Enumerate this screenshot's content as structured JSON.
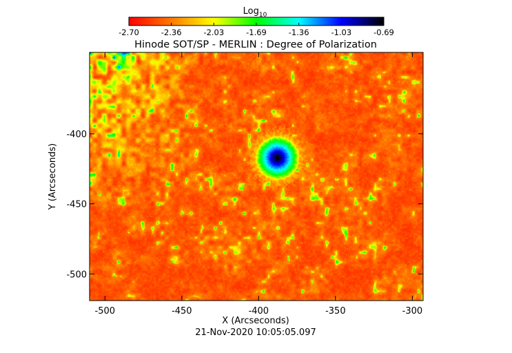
{
  "colorbar": {
    "label_main": "Log",
    "label_sub": "10",
    "ticks": [
      "-2.70",
      "-2.36",
      "-2.03",
      "-1.69",
      "-1.36",
      "-1.03",
      "-0.69"
    ],
    "range": [
      -2.7,
      -0.69
    ],
    "colormap": [
      "#ff0000",
      "#ff7a00",
      "#ffff00",
      "#00ff00",
      "#00ffff",
      "#0000ff",
      "#000000"
    ]
  },
  "chart_data": {
    "type": "heatmap",
    "title": "Hinode SOT/SP - MERLIN : Degree of Polarization",
    "xlabel": "X (Arcseconds)",
    "ylabel": "Y (Arcseconds)",
    "xlim": [
      -510,
      -293
    ],
    "ylim": [
      -519,
      -342
    ],
    "x_ticks": [
      -500,
      -450,
      -400,
      -350,
      -300
    ],
    "y_ticks": [
      -400,
      -450,
      -500
    ],
    "x_tick_labels": [
      "-500",
      "-450",
      "-400",
      "-350",
      "-300"
    ],
    "y_tick_labels": [
      "-400",
      "-450",
      "-500"
    ],
    "value_range": [
      -2.7,
      -0.69
    ],
    "background_level": -2.7,
    "features": [
      {
        "name": "sunspot",
        "x": -388,
        "y": -417,
        "peak": -0.69
      }
    ],
    "timestamp": "21-Nov-2020 10:05:05.097"
  },
  "colors": {
    "axis": "#000000",
    "background": "#ffffff"
  }
}
